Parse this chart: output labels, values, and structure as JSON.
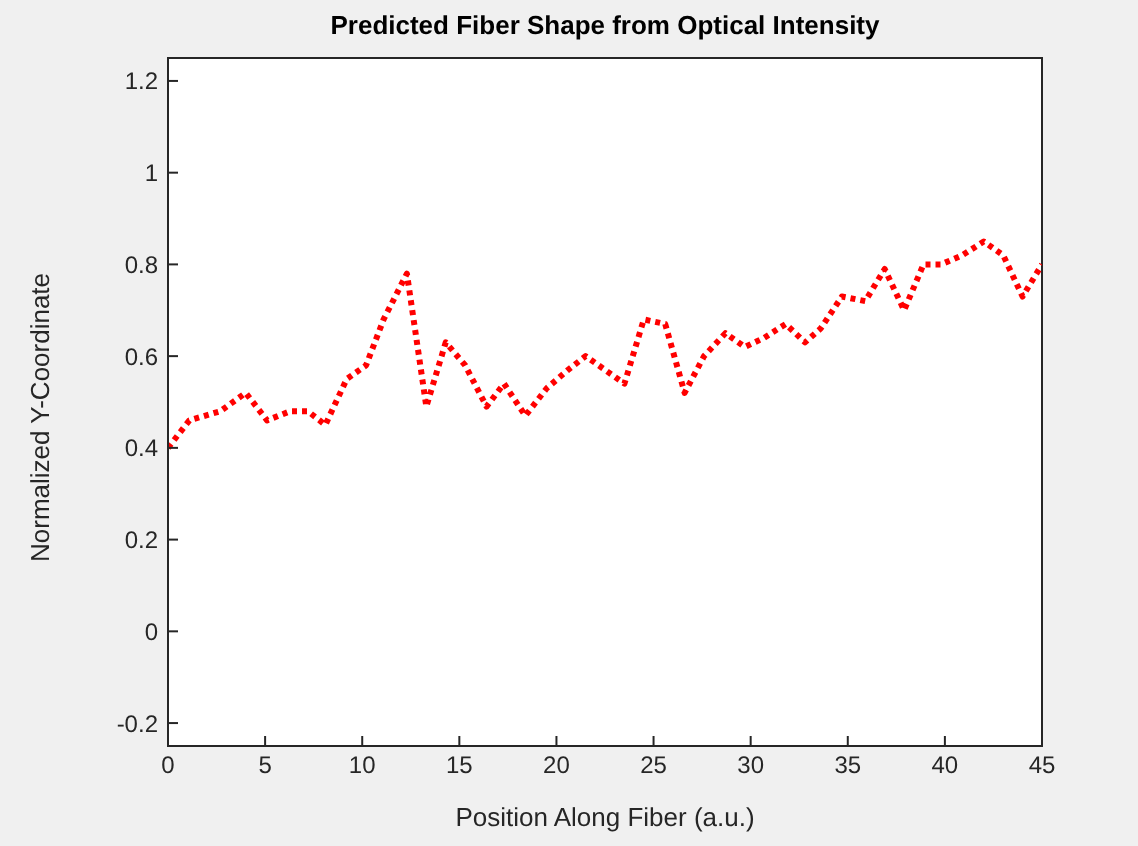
{
  "chart_data": {
    "type": "line",
    "title": "Predicted Fiber Shape from Optical Intensity",
    "xlabel": "Position Along Fiber (a.u.)",
    "ylabel": "Normalized Y-Coordinate",
    "series": [
      {
        "color": "#ff0000",
        "x": [
          0,
          1.1,
          2.7,
          4,
          5.1,
          6.3,
          7.2,
          8.1,
          9.2,
          10.2,
          11.1,
          12.3,
          13.3,
          14.3,
          15.3,
          16.4,
          17.3,
          18.4,
          19.5,
          20.6,
          21.5,
          23.5,
          24.5,
          25.6,
          26.6,
          27.6,
          28.7,
          29.7,
          30.7,
          31.8,
          32.8,
          33.6,
          34.7,
          35.9,
          36.9,
          37.9,
          38.9,
          39.8,
          40.9,
          42,
          43,
          44,
          45
        ],
        "values": [
          0.4,
          0.46,
          0.48,
          0.52,
          0.46,
          0.48,
          0.48,
          0.45,
          0.55,
          0.58,
          0.68,
          0.78,
          0.49,
          0.63,
          0.58,
          0.49,
          0.54,
          0.47,
          0.53,
          0.57,
          0.6,
          0.54,
          0.68,
          0.67,
          0.52,
          0.6,
          0.65,
          0.62,
          0.64,
          0.67,
          0.63,
          0.66,
          0.73,
          0.72,
          0.79,
          0.7,
          0.8,
          0.8,
          0.82,
          0.85,
          0.82,
          0.73,
          0.8
        ]
      }
    ],
    "xlim": [
      0,
      45
    ],
    "xticks": [
      0,
      5,
      10,
      15,
      20,
      25,
      30,
      35,
      40,
      45
    ],
    "ylim": [
      -0.25,
      1.25
    ],
    "yticks": [
      -0.2,
      0,
      0.2,
      0.4,
      0.6,
      0.8,
      1,
      1.2
    ],
    "grid": false,
    "legend": false,
    "marker": "none",
    "line_style": "dotted"
  }
}
